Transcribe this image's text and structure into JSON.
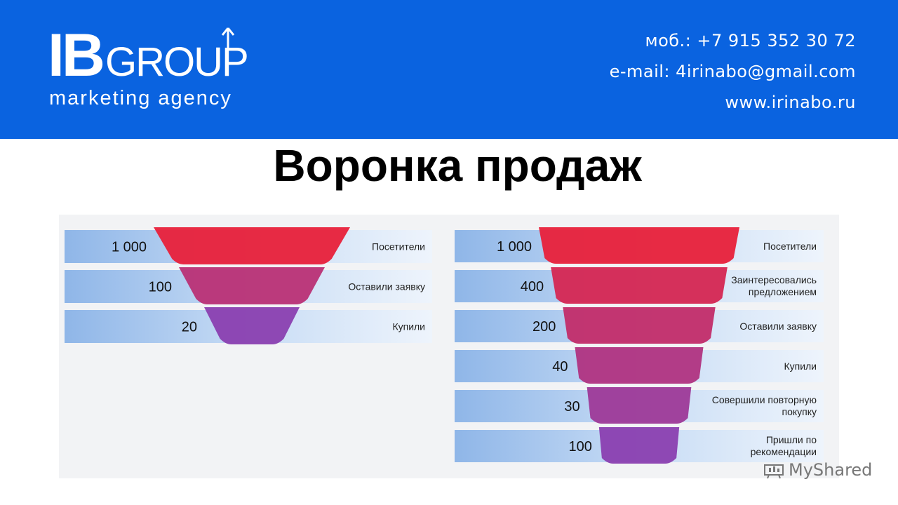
{
  "header": {
    "logo": {
      "mark": "IB",
      "wordmark": "GROUP",
      "tagline": "marketing agency"
    },
    "contacts": {
      "phone": "моб.: +7 915 352 30 72",
      "email": "e-mail: 4irinabo@gmail.com",
      "website": "www.irinabo.ru"
    },
    "colors": {
      "background": "#0a63e0",
      "text": "#ffffff"
    }
  },
  "title": "Воронка продаж",
  "chart_data": [
    {
      "type": "funnel",
      "stages": [
        {
          "value": 1000,
          "label": "1 000",
          "name": "Посетители"
        },
        {
          "value": 100,
          "label": "100",
          "name": "Оставили заявку"
        },
        {
          "value": 20,
          "label": "20",
          "name": "Купили"
        }
      ],
      "colors": {
        "top": "#e8203a",
        "bottom": "#8a3fb0",
        "band": "#a8c6ec"
      }
    },
    {
      "type": "funnel",
      "stages": [
        {
          "value": 1000,
          "label": "1 000",
          "name": "Посетители"
        },
        {
          "value": 400,
          "label": "400",
          "name": "Заинтересовались предложением"
        },
        {
          "value": 200,
          "label": "200",
          "name": "Оставили заявку"
        },
        {
          "value": 40,
          "label": "40",
          "name": "Купили"
        },
        {
          "value": 30,
          "label": "30",
          "name": "Совершили повторную покупку"
        },
        {
          "value": 100,
          "label": "100",
          "name": "Пришли по рекомендации"
        }
      ],
      "colors": {
        "top": "#e8203a",
        "bottom": "#8a3fb0",
        "band": "#a8c6ec"
      }
    }
  ],
  "watermark": {
    "icon": "mydshared-logo-icon",
    "text": "MyShared"
  }
}
